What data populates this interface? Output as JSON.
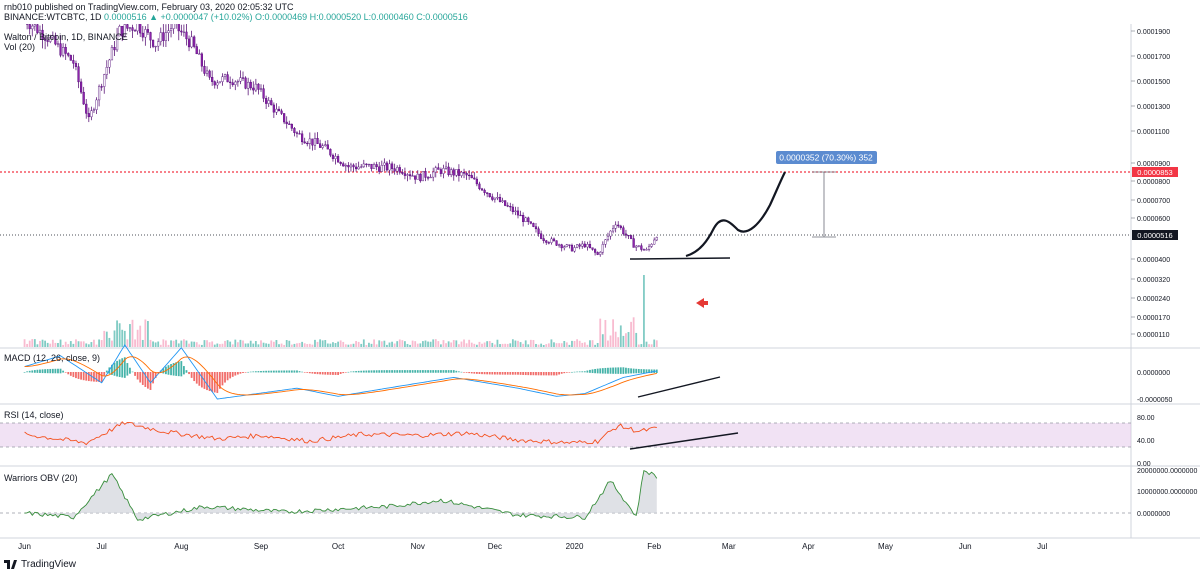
{
  "header": {
    "line1": "rnb010 published on TradingView.com, February 03, 2020 02:05:32 UTC",
    "line2_prefix": "BINANCE:WTCBTC, 1D",
    "line2_values": "0.0000516 ▲ +0.0000047 (+10.02%) O:0.0000469 H:0.0000520 L:0.0000460 C:0.0000516"
  },
  "footer": {
    "brand": "TradingView"
  },
  "chart_data": [
    {
      "type": "line",
      "pane": "price",
      "title": "Walton / Bitcoin, 1D, BINANCE",
      "subtitle": "Vol (20)",
      "x_ticks": [
        "Jun",
        "Jul",
        "Aug",
        "Sep",
        "Oct",
        "Nov",
        "Dec",
        "2020",
        "Feb",
        "Mar",
        "Apr",
        "May",
        "Jun",
        "Jul"
      ],
      "y_ticks": [
        "0.0001900",
        "0.0001700",
        "0.0001500",
        "0.0001300",
        "0.0001100",
        "0.0000900",
        "0.0000800",
        "0.0000700",
        "0.0000600",
        "0.0000400",
        "0.0000320",
        "0.0000240",
        "0.0000170",
        "0.0000110"
      ],
      "series": [
        {
          "values": [
            [
              "2019-06-01",
              0.0002
            ],
            [
              "2019-06-10",
              0.000185
            ],
            [
              "2019-06-20",
              0.000165
            ],
            [
              "2019-06-26",
              0.000118
            ],
            [
              "2019-07-01",
              0.00015
            ],
            [
              "2019-07-08",
              0.00019
            ],
            [
              "2019-07-15",
              0.000195
            ],
            [
              "2019-07-22",
              0.00018
            ],
            [
              "2019-07-29",
              0.000195
            ],
            [
              "2019-08-05",
              0.00018
            ],
            [
              "2019-08-12",
              0.00015
            ],
            [
              "2019-08-20",
              0.000152
            ],
            [
              "2019-08-30",
              0.000145
            ],
            [
              "2019-09-05",
              0.00013
            ],
            [
              "2019-09-15",
              0.000108
            ],
            [
              "2019-09-25",
              0.0001
            ],
            [
              "2019-10-05",
              8.8e-05
            ],
            [
              "2019-10-15",
              8.8e-05
            ],
            [
              "2019-10-25",
              8.7e-05
            ],
            [
              "2019-11-01",
              8.2e-05
            ],
            [
              "2019-11-10",
              8.6e-05
            ],
            [
              "2019-11-20",
              8.3e-05
            ],
            [
              "2019-11-30",
              7.2e-05
            ],
            [
              "2019-12-10",
              6.2e-05
            ],
            [
              "2019-12-20",
              5e-05
            ],
            [
              "2019-12-31",
              4.5e-05
            ],
            [
              "2020-01-05",
              4.7e-05
            ],
            [
              "2020-01-10",
              4.2e-05
            ],
            [
              "2020-01-17",
              5.8e-05
            ],
            [
              "2020-01-24",
              4.7e-05
            ],
            [
              "2020-01-29",
              4.4e-05
            ],
            [
              "2020-02-02",
              5.2e-05
            ]
          ]
        }
      ],
      "annotations": {
        "measure_label": "0.0000352 (70.30%) 352",
        "target_price_label": "0.0000853",
        "current_price_label": "0.0000516"
      }
    },
    {
      "type": "line",
      "pane": "macd",
      "title": "MACD (12, 26, close, 9)",
      "y_ticks": [
        "0.0000000",
        "-0.0000050"
      ],
      "series": [
        {
          "values": [
            [
              "2019-06-01",
              1e-06
            ],
            [
              "2019-06-15",
              3e-06
            ],
            [
              "2019-07-01",
              -2e-06
            ],
            [
              "2019-07-10",
              5e-06
            ],
            [
              "2019-07-20",
              -2e-06
            ],
            [
              "2019-08-01",
              4.5e-06
            ],
            [
              "2019-08-15",
              -5e-06
            ],
            [
              "2019-09-15",
              -3e-06
            ],
            [
              "2019-10-01",
              -4.5e-06
            ],
            [
              "2019-10-20",
              -3e-06
            ],
            [
              "2019-11-15",
              -1e-06
            ],
            [
              "2019-12-10",
              -3e-06
            ],
            [
              "2019-12-25",
              -4.5e-06
            ],
            [
              "2020-01-05",
              -4e-06
            ],
            [
              "2020-01-20",
              -1e-06
            ],
            [
              "2020-02-02",
              2e-07
            ]
          ]
        }
      ]
    },
    {
      "type": "line",
      "pane": "rsi",
      "title": "RSI (14, close)",
      "y_ticks": [
        "80.00",
        "40.00",
        "0.00"
      ],
      "series": [
        {
          "values": [
            [
              "2019-06-01",
              50
            ],
            [
              "2019-06-25",
              35
            ],
            [
              "2019-07-10",
              70
            ],
            [
              "2019-07-25",
              55
            ],
            [
              "2019-08-15",
              42
            ],
            [
              "2019-09-01",
              48
            ],
            [
              "2019-09-20",
              38
            ],
            [
              "2019-10-10",
              50
            ],
            [
              "2019-11-01",
              48
            ],
            [
              "2019-11-20",
              52
            ],
            [
              "2019-12-10",
              40
            ],
            [
              "2019-12-31",
              35
            ],
            [
              "2020-01-10",
              38
            ],
            [
              "2020-01-18",
              65
            ],
            [
              "2020-01-26",
              55
            ],
            [
              "2020-02-02",
              60
            ]
          ]
        }
      ]
    },
    {
      "type": "line",
      "pane": "obv",
      "title": "Warriors OBV (20)",
      "y_ticks": [
        "20000000.0000000",
        "10000000.0000000",
        "0.0000000"
      ],
      "series": [
        {
          "values": [
            [
              "2019-06-01",
              0
            ],
            [
              "2019-06-20",
              -2000000
            ],
            [
              "2019-07-05",
              18000000
            ],
            [
              "2019-07-15",
              -3000000
            ],
            [
              "2019-08-10",
              3000000
            ],
            [
              "2019-09-10",
              500000
            ],
            [
              "2019-10-20",
              3000000
            ],
            [
              "2019-11-10",
              6000000
            ],
            [
              "2019-12-10",
              -1000000
            ],
            [
              "2020-01-05",
              -2000000
            ],
            [
              "2020-01-15",
              15000000
            ],
            [
              "2020-01-25",
              -1500000
            ],
            [
              "2020-01-28",
              20000000
            ],
            [
              "2020-02-02",
              17000000
            ]
          ]
        }
      ]
    }
  ]
}
